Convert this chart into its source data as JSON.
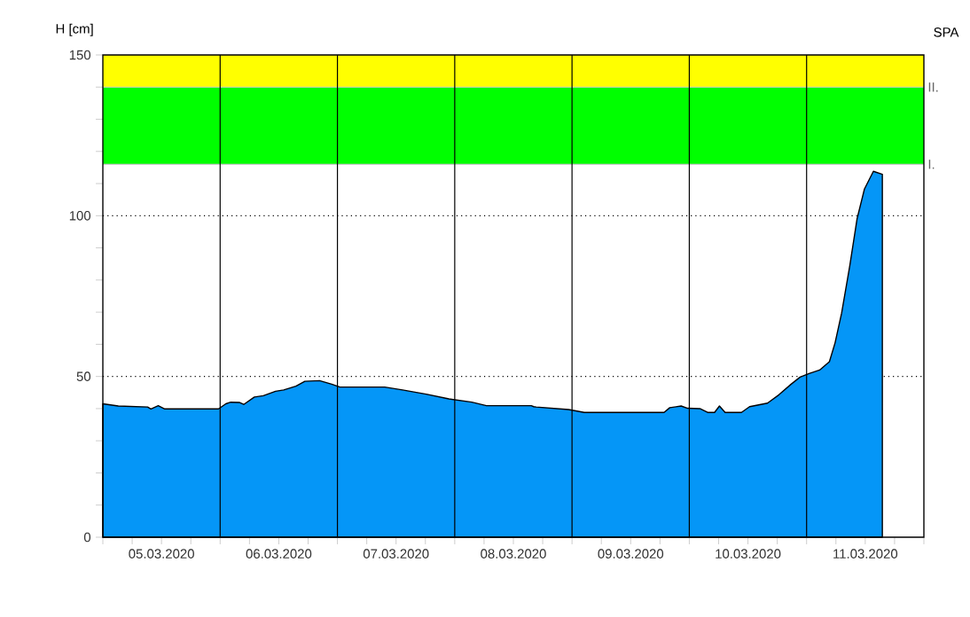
{
  "chart_data": {
    "type": "area",
    "ylabel": "H [cm]",
    "annotations": [
      "SPA"
    ],
    "x": [
      "2020-03-05T00:00",
      "2020-03-05T03:10",
      "2020-03-05T09:10",
      "2020-03-05T09:50",
      "2020-03-05T11:20",
      "2020-03-05T12:40",
      "2020-03-05T23:40",
      "2020-03-06T01:10",
      "2020-03-06T02:10",
      "2020-03-06T04:00",
      "2020-03-06T04:50",
      "2020-03-06T07:00",
      "2020-03-06T08:50",
      "2020-03-06T11:20",
      "2020-03-06T13:00",
      "2020-03-06T15:30",
      "2020-03-06T17:20",
      "2020-03-06T20:20",
      "2020-03-06T22:50",
      "2020-03-07T00:30",
      "2020-03-07T09:40",
      "2020-03-07T13:20",
      "2020-03-07T18:10",
      "2020-03-07T22:50",
      "2020-03-08T03:30",
      "2020-03-08T06:30",
      "2020-03-08T15:40",
      "2020-03-08T16:10",
      "2020-03-08T16:40",
      "2020-03-08T23:20",
      "2020-03-09T02:30",
      "2020-03-09T18:50",
      "2020-03-09T20:00",
      "2020-03-09T22:20",
      "2020-03-09T23:40",
      "2020-03-10T02:10",
      "2020-03-10T03:50",
      "2020-03-10T05:10",
      "2020-03-10T06:10",
      "2020-03-10T07:20",
      "2020-03-10T10:40",
      "2020-03-10T12:20",
      "2020-03-10T16:00",
      "2020-03-10T18:20",
      "2020-03-10T20:50",
      "2020-03-10T22:40",
      "2020-03-11T00:30",
      "2020-03-11T02:40",
      "2020-03-11T04:40",
      "2020-03-11T05:50",
      "2020-03-11T07:10",
      "2020-03-11T08:50",
      "2020-03-11T10:20",
      "2020-03-11T11:50",
      "2020-03-11T13:40",
      "2020-03-11T15:30"
    ],
    "series": [
      {
        "color": "#0596f7",
        "values": [
          41.5,
          40.8,
          40.5,
          39.9,
          40.9,
          39.9,
          39.9,
          41.5,
          42,
          41.9,
          41.3,
          43.6,
          44,
          45.4,
          45.8,
          47,
          48.5,
          48.7,
          47.6,
          46.7,
          46.7,
          45.8,
          44.5,
          43,
          42,
          40.9,
          40.9,
          40.6,
          40.5,
          39.7,
          38.8,
          38.8,
          40.3,
          40.8,
          40.1,
          40,
          38.8,
          38.8,
          40.8,
          38.8,
          38.8,
          40.6,
          41.7,
          44.3,
          47.6,
          49.8,
          50.9,
          52,
          54.6,
          60.5,
          69.7,
          84.4,
          99.1,
          108.3,
          113.8,
          112.9
        ]
      }
    ],
    "xlim": [
      "2020-03-05T00:00",
      "2020-03-12T00:00"
    ],
    "xticks": [
      {
        "value": "2020-03-05T00:00",
        "label": null
      },
      {
        "value": "2020-03-05T06:00",
        "label": null
      },
      {
        "value": "2020-03-05T12:00",
        "label": "05.03.2020"
      },
      {
        "value": "2020-03-05T18:00",
        "label": null
      },
      {
        "value": "2020-03-06T00:00",
        "label": null
      },
      {
        "value": "2020-03-06T06:00",
        "label": null
      },
      {
        "value": "2020-03-06T12:00",
        "label": "06.03.2020"
      },
      {
        "value": "2020-03-06T18:00",
        "label": null
      },
      {
        "value": "2020-03-07T00:00",
        "label": null
      },
      {
        "value": "2020-03-07T06:00",
        "label": null
      },
      {
        "value": "2020-03-07T12:00",
        "label": "07.03.2020"
      },
      {
        "value": "2020-03-07T18:00",
        "label": null
      },
      {
        "value": "2020-03-08T00:00",
        "label": null
      },
      {
        "value": "2020-03-08T06:00",
        "label": null
      },
      {
        "value": "2020-03-08T12:00",
        "label": "08.03.2020"
      },
      {
        "value": "2020-03-08T18:00",
        "label": null
      },
      {
        "value": "2020-03-09T00:00",
        "label": null
      },
      {
        "value": "2020-03-09T06:00",
        "label": null
      },
      {
        "value": "2020-03-09T12:00",
        "label": "09.03.2020"
      },
      {
        "value": "2020-03-09T18:00",
        "label": null
      },
      {
        "value": "2020-03-10T00:00",
        "label": null
      },
      {
        "value": "2020-03-10T06:00",
        "label": null
      },
      {
        "value": "2020-03-10T12:00",
        "label": "10.03.2020"
      },
      {
        "value": "2020-03-10T18:00",
        "label": null
      },
      {
        "value": "2020-03-11T00:00",
        "label": null
      },
      {
        "value": "2020-03-11T06:00",
        "label": null
      },
      {
        "value": "2020-03-11T12:00",
        "label": "11.03.2020"
      },
      {
        "value": "2020-03-11T18:00",
        "label": null
      },
      {
        "value": "2020-03-12T00:00",
        "label": null
      }
    ],
    "ylim": [
      0,
      150
    ],
    "yticks": [
      0,
      {
        "value": 10,
        "label": null
      },
      {
        "value": 20,
        "label": null
      },
      {
        "value": 30,
        "label": null
      },
      {
        "value": 40,
        "label": null
      },
      50,
      {
        "value": 60,
        "label": null
      },
      {
        "value": 70,
        "label": null
      },
      {
        "value": 80,
        "label": null
      },
      {
        "value": 90,
        "label": null
      },
      100,
      {
        "value": 110,
        "label": null
      },
      {
        "value": 120,
        "label": null
      },
      {
        "value": 130,
        "label": null
      },
      {
        "value": 140,
        "label": null
      },
      150
    ],
    "bands": [
      {
        "axis": "y",
        "from": 116,
        "to": 140,
        "color": "#00ff00"
      },
      {
        "axis": "y",
        "from": 140,
        "to": 150,
        "color": "#ffff00"
      }
    ],
    "ref_lines": [
      {
        "axis": "y",
        "value": 50,
        "color": "#000000",
        "line_style": "dotted"
      },
      {
        "axis": "y",
        "value": 100,
        "color": "#000000",
        "line_style": "dotted"
      },
      {
        "axis": "y",
        "value": 116,
        "label": "I.",
        "color": "#c8c8c8",
        "line_style": "solid"
      },
      {
        "axis": "y",
        "value": 140,
        "label": "II.",
        "color": "#c8c8c8",
        "line_style": "solid"
      },
      {
        "axis": "x",
        "value": "2020-03-06T00:00",
        "color": "#000000",
        "line_style": "solid"
      },
      {
        "axis": "x",
        "value": "2020-03-07T00:00",
        "color": "#000000",
        "line_style": "solid"
      },
      {
        "axis": "x",
        "value": "2020-03-08T00:00",
        "color": "#000000",
        "line_style": "solid"
      },
      {
        "axis": "x",
        "value": "2020-03-09T00:00",
        "color": "#000000",
        "line_style": "solid"
      },
      {
        "axis": "x",
        "value": "2020-03-10T00:00",
        "color": "#000000",
        "line_style": "solid"
      },
      {
        "axis": "x",
        "value": "2020-03-11T00:00",
        "color": "#000000",
        "line_style": "solid"
      }
    ]
  }
}
